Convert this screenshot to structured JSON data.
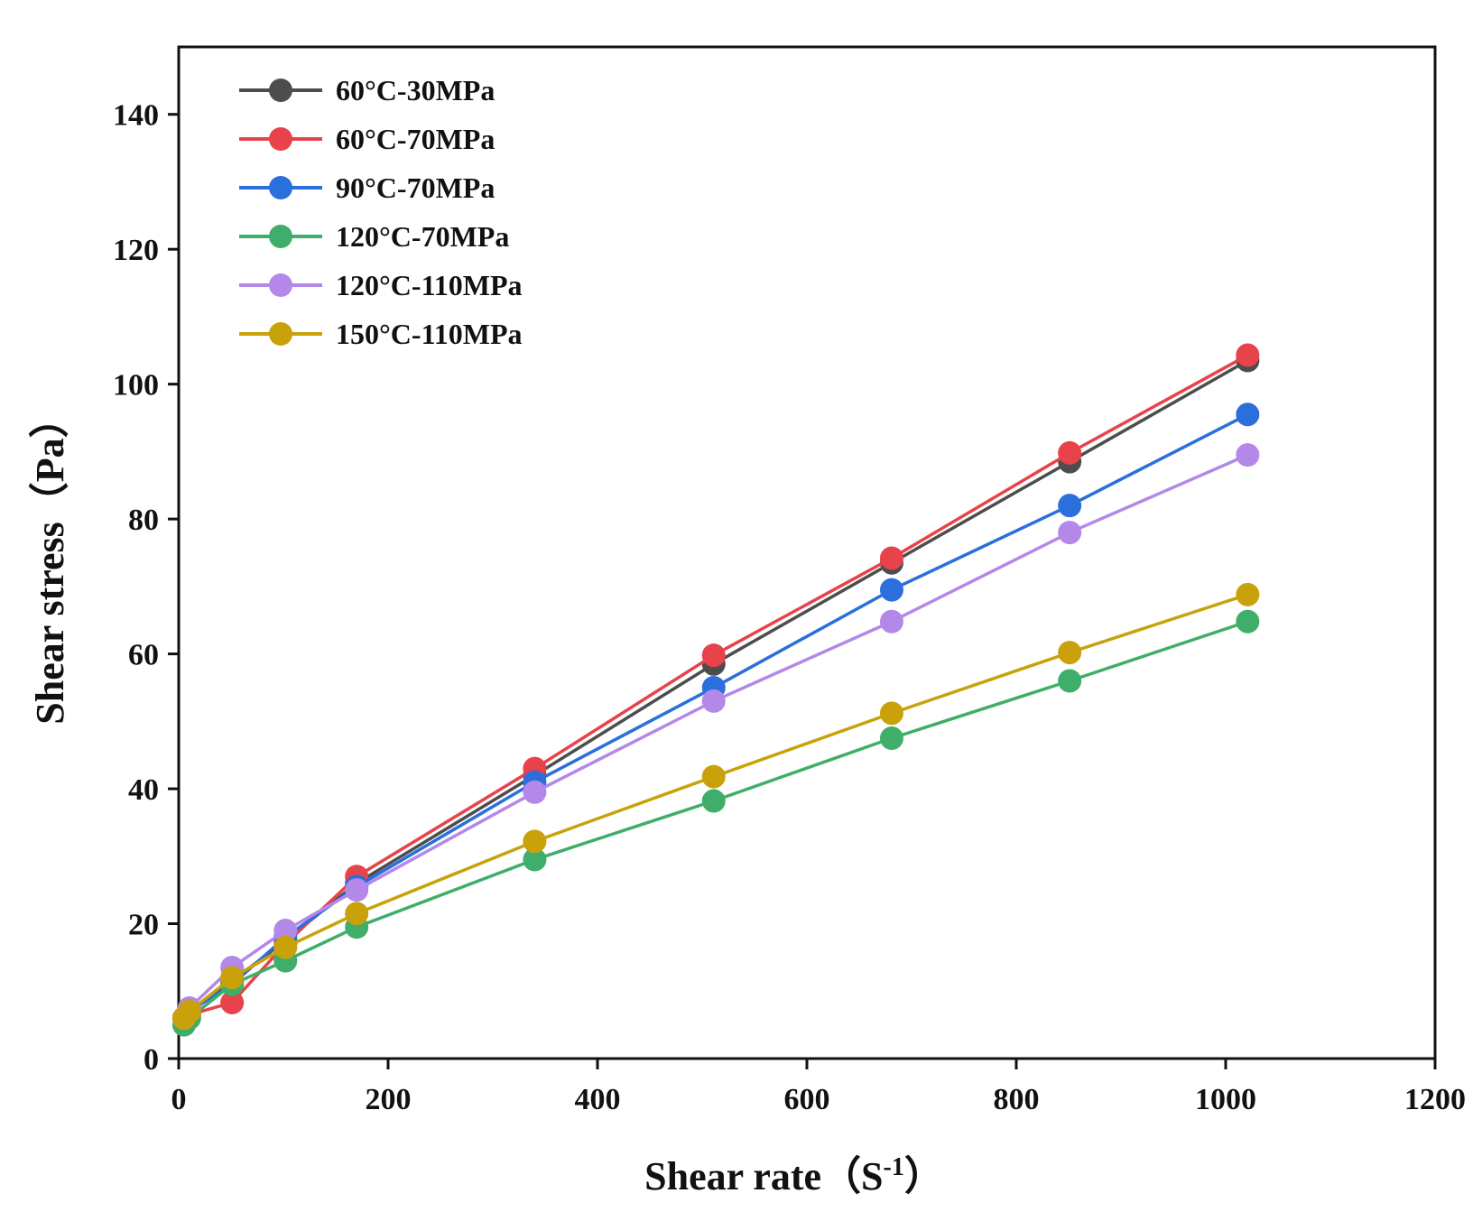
{
  "chart_data": {
    "type": "line",
    "title": "",
    "xlabel": "Shear rate",
    "xlabel_unit": "S",
    "xlabel_unit_exp": "-1",
    "ylabel": "Shear stress（Pa）",
    "xlim": [
      0,
      1200
    ],
    "ylim": [
      0,
      150
    ],
    "xticks": [
      0,
      200,
      400,
      600,
      800,
      1000,
      1200
    ],
    "yticks": [
      0,
      20,
      40,
      60,
      80,
      100,
      120,
      140
    ],
    "grid": false,
    "legend_position": "top-left",
    "x": [
      5.1,
      10.2,
      51,
      102,
      170,
      340,
      511,
      681,
      851,
      1021
    ],
    "series": [
      {
        "name": "60°C-30MPa",
        "color": "#4d4d4d",
        "values": [
          6.0,
          7.0,
          11.5,
          17.5,
          26.0,
          42.0,
          58.5,
          73.5,
          88.5,
          103.5
        ]
      },
      {
        "name": "60°C-70MPa",
        "color": "#e8424a",
        "values": [
          6.0,
          6.5,
          8.3,
          17.0,
          27.0,
          43.0,
          59.8,
          74.2,
          89.8,
          104.3
        ]
      },
      {
        "name": "90°C-70MPa",
        "color": "#2a6fdb",
        "values": [
          6.0,
          7.0,
          11.0,
          18.0,
          25.5,
          41.0,
          55.0,
          69.5,
          82.0,
          95.5
        ]
      },
      {
        "name": "120°C-70MPa",
        "color": "#3fae6a",
        "values": [
          5.0,
          6.0,
          11.0,
          14.5,
          19.5,
          29.5,
          38.2,
          47.5,
          56.0,
          64.8
        ]
      },
      {
        "name": "120°C-110MPa",
        "color": "#b388e8",
        "values": [
          6.0,
          7.5,
          13.5,
          19.0,
          25.0,
          39.5,
          53.0,
          64.8,
          78.0,
          89.5
        ]
      },
      {
        "name": "150°C-110MPa",
        "color": "#c9a20b",
        "values": [
          6.0,
          7.0,
          12.0,
          16.5,
          21.5,
          32.2,
          41.8,
          51.2,
          60.2,
          68.8
        ]
      }
    ]
  }
}
